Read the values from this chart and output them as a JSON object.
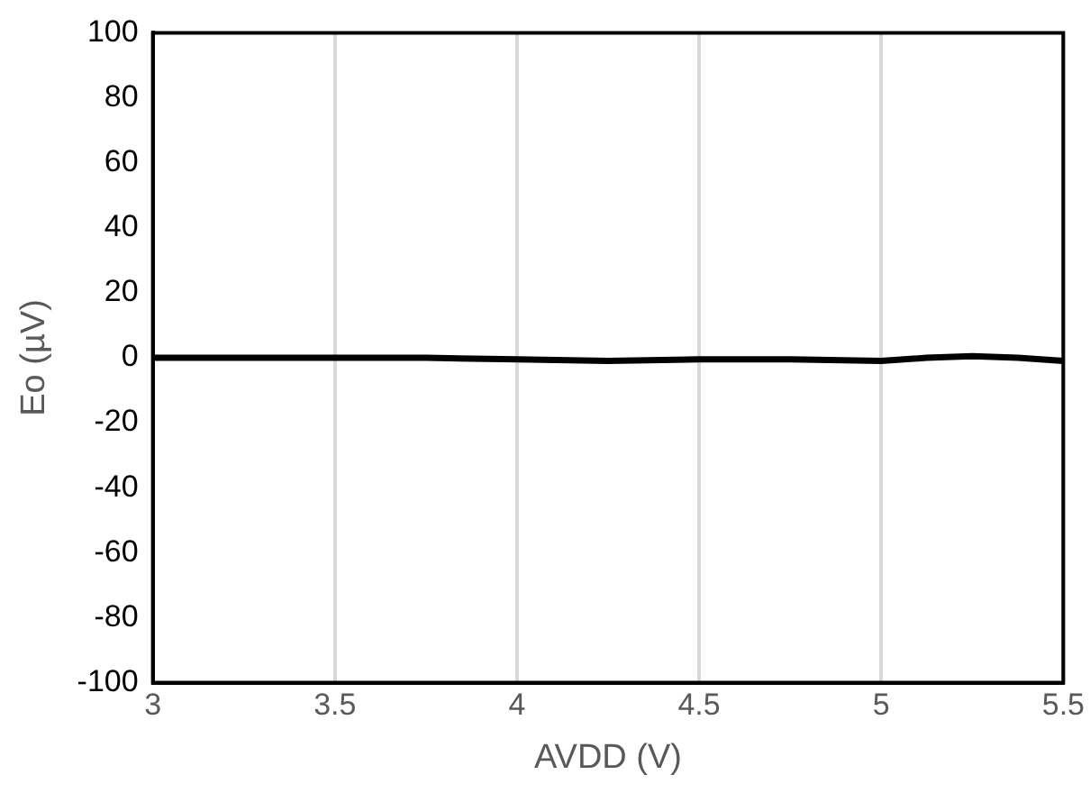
{
  "chart_data": {
    "type": "line",
    "xlabel": "AVDD (V)",
    "ylabel": "Eo (µV)",
    "x": [
      3,
      3.25,
      3.5,
      3.75,
      4,
      4.25,
      4.5,
      4.75,
      5,
      5.125,
      5.25,
      5.375,
      5.5
    ],
    "series": [
      {
        "color": "#000000",
        "values": [
          0,
          0,
          0,
          0,
          -0.5,
          -1,
          -0.5,
          -0.5,
          -1,
          0,
          0.5,
          0,
          -1
        ]
      }
    ],
    "xlim": [
      3,
      5.5
    ],
    "xticks": [
      3,
      3.5,
      4,
      4.5,
      5,
      5.5
    ],
    "ylim": [
      -100,
      100
    ],
    "yticks": [
      -100,
      -80,
      -60,
      -40,
      -20,
      0,
      20,
      40,
      60,
      80,
      100
    ],
    "grid": "x",
    "legend": false,
    "marker": "none",
    "line_style": "solid"
  }
}
